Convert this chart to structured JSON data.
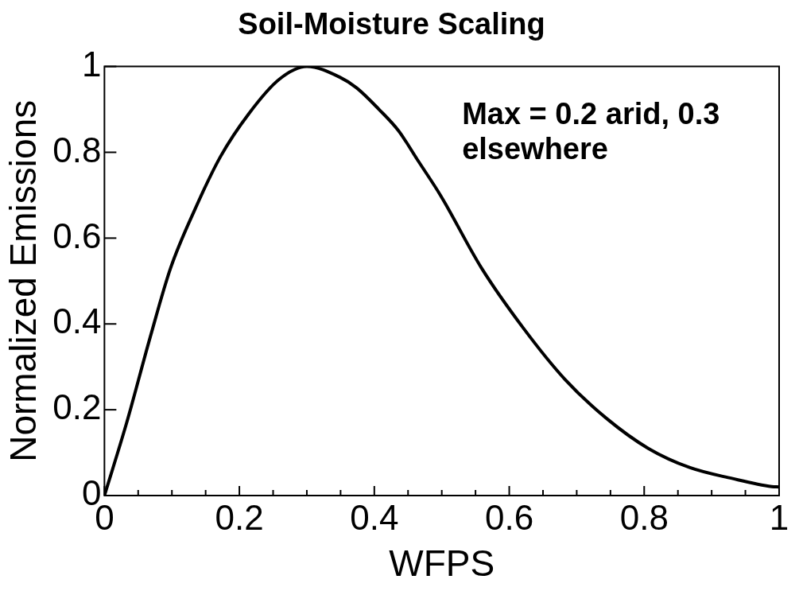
{
  "chart_data": {
    "type": "line",
    "title": "Soil-Moisture Scaling",
    "xlabel": "WFPS",
    "ylabel": "Normalized Emissions",
    "annotations": [
      "Max = 0.2 arid, 0.3 elsewhere"
    ],
    "x": [
      0,
      0.033,
      0.068,
      0.098,
      0.135,
      0.172,
      0.214,
      0.259,
      0.3,
      0.349,
      0.374,
      0.407,
      0.436,
      0.465,
      0.498,
      0.559,
      0.621,
      0.683,
      0.744,
      0.806,
      0.868,
      0.93,
      0.989,
      1
    ],
    "series": [
      {
        "color": "#000000",
        "values": [
          0,
          0.17,
          0.37,
          0.53,
          0.67,
          0.79,
          0.89,
          0.97,
          1,
          0.975,
          0.95,
          0.9,
          0.85,
          0.78,
          0.7,
          0.53,
          0.39,
          0.27,
          0.18,
          0.11,
          0.065,
          0.04,
          0.021,
          0.02
        ]
      }
    ],
    "xlim": [
      0,
      1
    ],
    "ylim": [
      0,
      1
    ],
    "xticks": [
      0,
      {
        "value": 0.05,
        "label": null
      },
      {
        "value": 0.1,
        "label": null
      },
      {
        "value": 0.15,
        "label": null
      },
      0.2,
      {
        "value": 0.25,
        "label": null
      },
      {
        "value": 0.3,
        "label": null
      },
      {
        "value": 0.35,
        "label": null
      },
      0.4,
      {
        "value": 0.45,
        "label": null
      },
      {
        "value": 0.5,
        "label": null
      },
      {
        "value": 0.55,
        "label": null
      },
      0.6,
      {
        "value": 0.65,
        "label": null
      },
      {
        "value": 0.7,
        "label": null
      },
      {
        "value": 0.75,
        "label": null
      },
      0.8,
      {
        "value": 0.85,
        "label": null
      },
      {
        "value": 0.9,
        "label": null
      },
      {
        "value": 0.95,
        "label": null
      },
      1
    ],
    "yticks": [
      0,
      0.2,
      0.4,
      0.6,
      0.8,
      1
    ],
    "grid": false,
    "legend": false,
    "marker": "none",
    "line_style": "solid"
  }
}
